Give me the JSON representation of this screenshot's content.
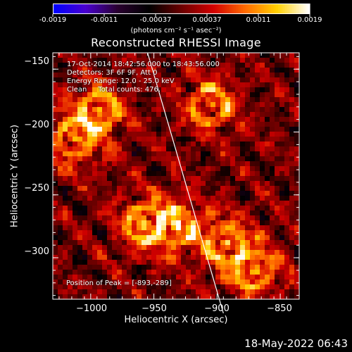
{
  "colorbar": {
    "ticks": [
      "-0.0019",
      "-0.0011",
      "-0.00037",
      "0.00037",
      "0.0011",
      "0.0019"
    ],
    "units": "(photons cm⁻² s⁻¹ asec⁻²)",
    "colormap": [
      "#0000ff",
      "#4a00d0",
      "#2a0030",
      "#000000",
      "#6a0000",
      "#d20000",
      "#ff6a00",
      "#ffd000",
      "#ffffff"
    ]
  },
  "chart_data": {
    "type": "heatmap",
    "title": "Reconstructed RHESSI Image",
    "xlabel": "Heliocentric X (arcsec)",
    "ylabel": "Heliocentric Y (arcsec)",
    "xlim": [
      -1030,
      -835
    ],
    "ylim": [
      -333,
      -137
    ],
    "xticks": [
      -1000,
      -950,
      -900,
      -850
    ],
    "yticks": [
      -150,
      -200,
      -250,
      -300
    ],
    "xtick_labels": [
      "−1000",
      "−950",
      "−900",
      "−850"
    ],
    "ytick_labels": [
      "−150",
      "−200",
      "−250",
      "−300"
    ],
    "value_range": [
      -0.0019,
      0.0019
    ],
    "limb_line": {
      "x": [
        -955,
        -895
      ],
      "y": [
        -137,
        -333
      ]
    },
    "bright_sources": [
      {
        "x": -1012,
        "y": -205
      },
      {
        "x": -993,
        "y": -183
      },
      {
        "x": -958,
        "y": -273
      },
      {
        "x": -932,
        "y": -275
      },
      {
        "x": -893,
        "y": -289
      },
      {
        "x": -905,
        "y": -178
      },
      {
        "x": -870,
        "y": -310
      }
    ]
  },
  "annotations": {
    "time_range": "17-Oct-2014 18:42:56.000 to 18:43:56.000",
    "detectors": "Detectors: 3F 6F 9F, Att 0",
    "energy": "Energy Range: 12.0 - 25.0 keV",
    "clean": "Clean     Total counts: 476.",
    "peak": "Position of Peak = [-893,-289]"
  },
  "footer": "18-May-2022 06:43"
}
